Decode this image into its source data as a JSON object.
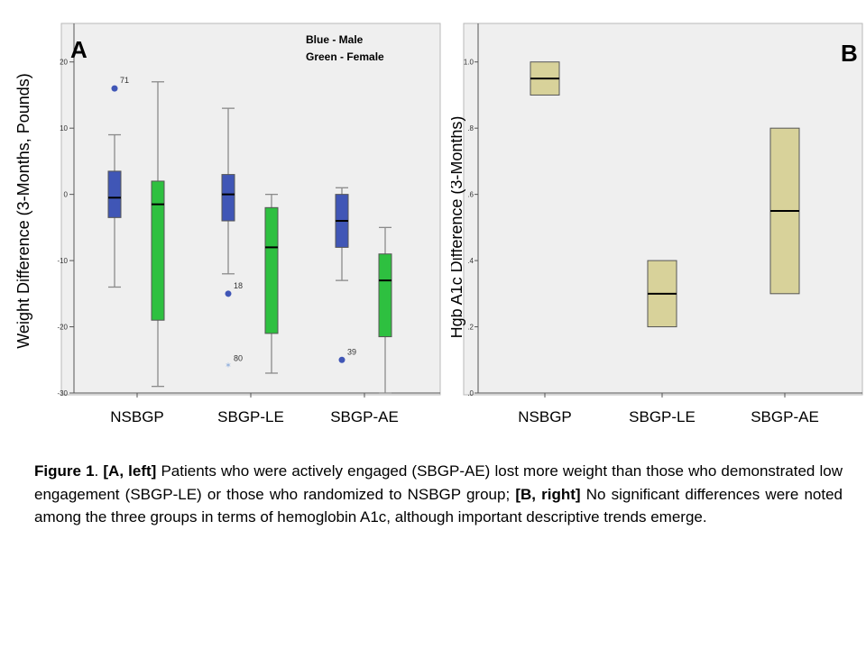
{
  "chart_data": [
    {
      "type": "box",
      "panel_label": "A",
      "legend": [
        "Blue - Male",
        "Green - Female"
      ],
      "ylabel": "Weight Difference (3-Months, Pounds)",
      "ylim": [
        -30,
        25
      ],
      "yticks": [
        20,
        10,
        0,
        -10,
        -20,
        -30
      ],
      "ytick_labels": [
        "20",
        "10",
        "0",
        "-10",
        "-20",
        "-30"
      ],
      "categories": [
        "NSBGP",
        "SBGP-LE",
        "SBGP-AE"
      ],
      "series": [
        {
          "name": "Blue - Male",
          "color": "#4056b6",
          "boxes": [
            {
              "whisker_low": -14,
              "q1": -3.5,
              "median": -0.5,
              "q3": 3.5,
              "whisker_high": 9
            },
            {
              "whisker_low": -12,
              "q1": -4,
              "median": 0,
              "q3": 3,
              "whisker_high": 13
            },
            {
              "whisker_low": -13,
              "q1": -8,
              "median": -4,
              "q3": 0,
              "whisker_high": 1
            }
          ]
        },
        {
          "name": "Green - Female",
          "color": "#2ec040",
          "boxes": [
            {
              "whisker_low": -29,
              "q1": -19,
              "median": -1.5,
              "q3": 2,
              "whisker_high": 17
            },
            {
              "whisker_low": -27,
              "q1": -21,
              "median": -8,
              "q3": -2,
              "whisker_high": 0
            },
            {
              "whisker_low": -30,
              "q1": -21.5,
              "median": -13,
              "q3": -9,
              "whisker_high": -5
            }
          ]
        }
      ],
      "outliers": [
        {
          "category": "NSBGP",
          "series": 0,
          "y": 16,
          "label": "71",
          "marker": "circle"
        },
        {
          "category": "SBGP-LE",
          "series": 0,
          "y": -15,
          "label": "18",
          "marker": "circle"
        },
        {
          "category": "SBGP-LE",
          "series": 0,
          "y": -26,
          "label": "80",
          "marker": "star"
        },
        {
          "category": "SBGP-AE",
          "series": 0,
          "y": -25,
          "label": "39",
          "marker": "circle"
        }
      ]
    },
    {
      "type": "box",
      "panel_label": "B",
      "ylabel": "Hgb A1c Difference (3-Months)",
      "ylim": [
        0,
        1.1
      ],
      "yticks": [
        1.0,
        0.8,
        0.6,
        0.4,
        0.2,
        0.0
      ],
      "ytick_labels": [
        "1.0",
        ".8",
        ".6",
        ".4",
        ".2",
        ".0"
      ],
      "categories": [
        "NSBGP",
        "SBGP-LE",
        "SBGP-AE"
      ],
      "series": [
        {
          "color": "#d8d29a",
          "boxes": [
            {
              "q1": 0.9,
              "median": 0.95,
              "q3": 1.0
            },
            {
              "q1": 0.2,
              "median": 0.3,
              "q3": 0.4
            },
            {
              "q1": 0.3,
              "median": 0.55,
              "q3": 0.8
            }
          ]
        }
      ]
    }
  ],
  "caption": {
    "lead": "Figure 1",
    "text_1": ". ",
    "a_label": "[A, left]",
    "text_2": " Patients who were actively engaged (SBGP-AE) lost more weight than those who demonstrated low engagement (SBGP-LE) or those who randomized to NSBGP group; ",
    "b_label": "[B, right]",
    "text_3": " No significant differences were noted among the three groups in terms of hemoglobin A1c, although important descriptive trends emerge."
  }
}
